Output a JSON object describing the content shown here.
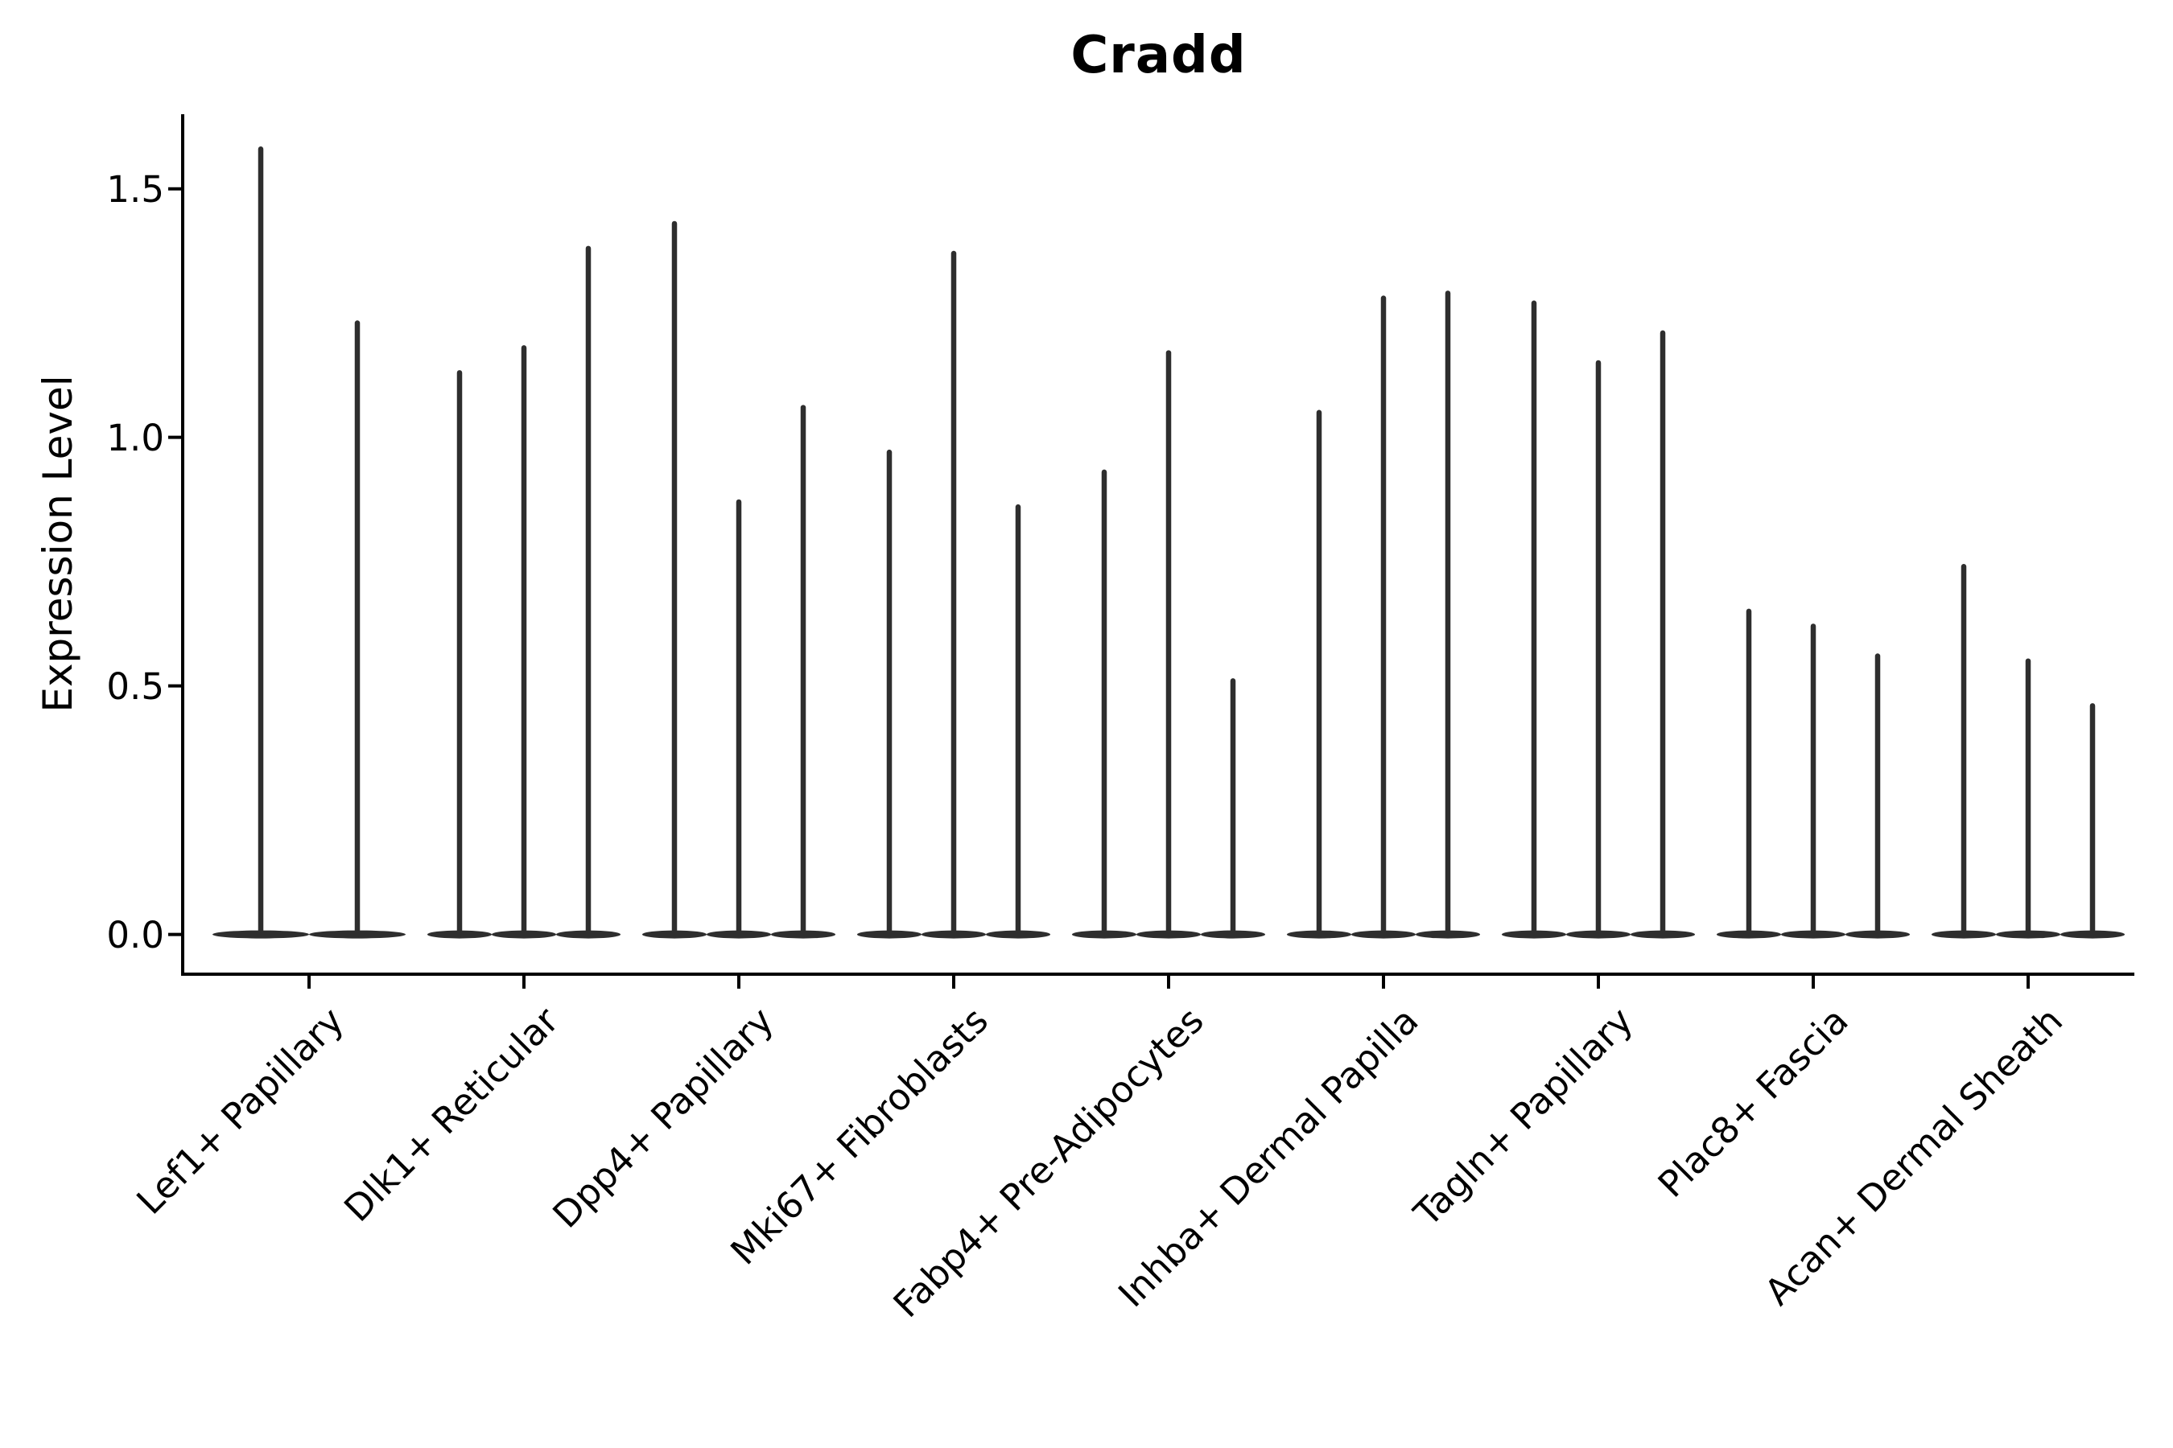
{
  "title": "Cradd",
  "chart_data": {
    "type": "violin",
    "title": "Cradd",
    "xlabel": "",
    "ylabel": "Expression Level",
    "grid": false,
    "legend": null,
    "violin_color": "#2e2e2e",
    "axis_color": "#000000",
    "background_color": "#ffffff",
    "ylim": [
      -0.08,
      1.65
    ],
    "yticks": [
      0.0,
      0.5,
      1.0,
      1.5
    ],
    "ytick_labels": [
      "0.0",
      "0.5",
      "1.0",
      "1.5"
    ],
    "xtick_rotation_degrees": 45,
    "categories": [
      "Lef1+ Papillary",
      "Dlk1+ Reticular",
      "Dpp4+ Papillary",
      "Mki67+ Fibroblasts",
      "Fabp4+ Pre-Adipocytes",
      "Inhba+ Dermal Papilla",
      "Tagln+ Papillary",
      "Plac8+ Fascia",
      "Acan+ Dermal Sheath"
    ],
    "series": [
      {
        "category": "Lef1+ Papillary",
        "violin_maxima": [
          1.58,
          1.23
        ]
      },
      {
        "category": "Dlk1+ Reticular",
        "violin_maxima": [
          1.13,
          1.18,
          1.38
        ]
      },
      {
        "category": "Dpp4+ Papillary",
        "violin_maxima": [
          1.43,
          0.87,
          1.06
        ]
      },
      {
        "category": "Mki67+ Fibroblasts",
        "violin_maxima": [
          0.97,
          1.37,
          0.86
        ]
      },
      {
        "category": "Fabp4+ Pre-Adipocytes",
        "violin_maxima": [
          0.93,
          1.17,
          0.51
        ]
      },
      {
        "category": "Inhba+ Dermal Papilla",
        "violin_maxima": [
          1.05,
          1.28,
          1.29
        ]
      },
      {
        "category": "Tagln+ Papillary",
        "violin_maxima": [
          1.27,
          1.15,
          1.21
        ]
      },
      {
        "category": "Plac8+ Fascia",
        "violin_maxima": [
          0.65,
          0.62,
          0.56
        ]
      },
      {
        "category": "Acan+ Dermal Sheath",
        "violin_maxima": [
          0.74,
          0.55,
          0.46
        ]
      }
    ],
    "violins_all_start_at": 0.0
  }
}
